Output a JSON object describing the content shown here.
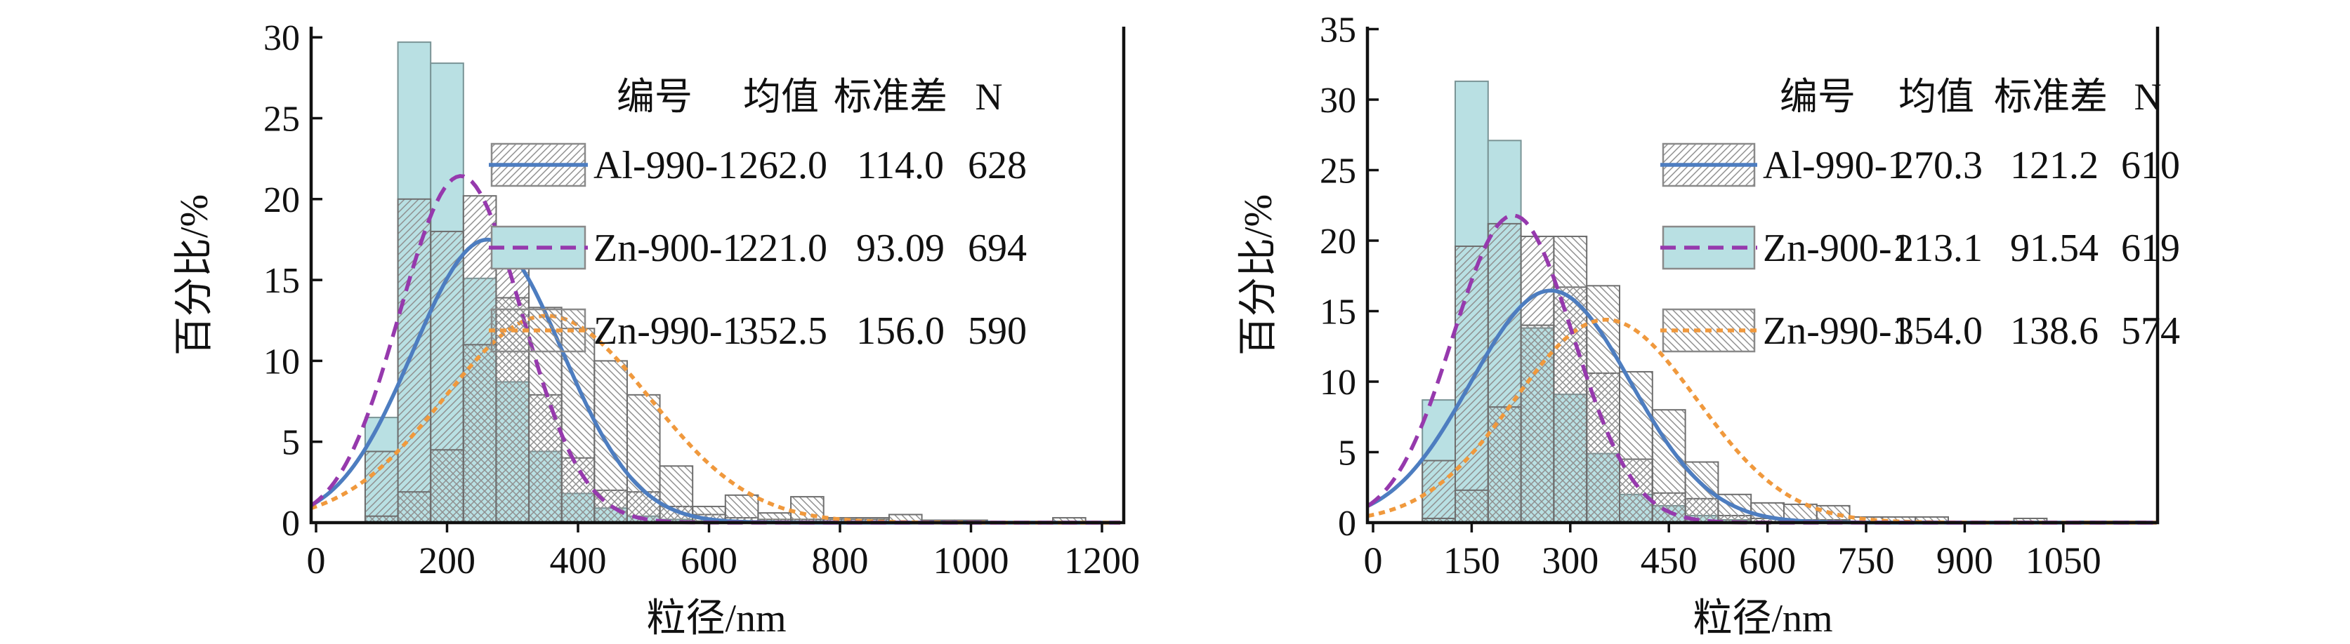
{
  "page": {
    "background": "#ffffff",
    "description_colors": {
      "al_curve_blue": "#4d7dc0",
      "zn900_curve_purple": "#9639ad",
      "zn990_curve_orange": "#f0993d",
      "cyan_bar_fill": "#b9e0e3",
      "bar_outline_gray": "#6e6e6e",
      "hatch_line_gray": "#8f8f8f",
      "axis_black": "#111111"
    }
  },
  "chart_data": [
    {
      "type": "bar",
      "subtype": "overlaid-histograms-with-gaussian-fits",
      "panel": "left",
      "xlabel": "粒径/nm",
      "ylabel": "百分比/%",
      "x_ticks": [
        0,
        200,
        400,
        600,
        800,
        1000,
        1200
      ],
      "y_ticks": [
        0,
        5,
        10,
        15,
        20,
        25,
        30
      ],
      "xlim": [
        -8,
        1233
      ],
      "ylim": [
        0,
        30.6
      ],
      "grid": false,
      "legend_position": "top-right-inside",
      "legend_headers": [
        "编号",
        "均值",
        "标准差",
        "N"
      ],
      "bin_start_nm": 75,
      "bin_width_nm": 50,
      "series": [
        {
          "label": "Al-990-1",
          "mean_label": "262.0",
          "sd_label": "114.0",
          "n_label": "628",
          "mean": 262.0,
          "sd": 114.0,
          "n": 628,
          "fill": "hatch-forward",
          "line_style": "solid",
          "color": "#4d7dc0",
          "heights": [
            4.4,
            20.0,
            18.0,
            20.2,
            17.4,
            7.9,
            4.0,
            2.0,
            1.9,
            1.0,
            0.5,
            0.3,
            0.2,
            0.2,
            0.2,
            0.2,
            0,
            0,
            0,
            0,
            0,
            0,
            0
          ]
        },
        {
          "label": "Zn-900-1",
          "mean_label": "221.0",
          "sd_label": "93.09",
          "n_label": "694",
          "mean": 221.0,
          "sd": 93.09,
          "n": 694,
          "fill": "cyan-solid",
          "line_style": "dashed",
          "color": "#9639ad",
          "heights": [
            6.5,
            29.7,
            28.4,
            15.1,
            8.7,
            4.4,
            1.8,
            0.9,
            0.4,
            0.2,
            0.1,
            0,
            0,
            0,
            0,
            0,
            0,
            0,
            0,
            0,
            0,
            0,
            0
          ]
        },
        {
          "label": "Zn-990-1",
          "mean_label": "352.5",
          "sd_label": "156.0",
          "n_label": "590",
          "mean": 352.5,
          "sd": 156.0,
          "n": 590,
          "fill": "hatch-back",
          "line_style": "short-dash",
          "color": "#f0993d",
          "heights": [
            0.4,
            1.9,
            4.5,
            11.0,
            13.9,
            13.3,
            12.0,
            10.0,
            7.9,
            3.5,
            1.0,
            1.7,
            0.6,
            1.6,
            0.3,
            0.3,
            0.5,
            0.15,
            0.15,
            0,
            0,
            0.3,
            0
          ]
        }
      ]
    },
    {
      "type": "bar",
      "subtype": "overlaid-histograms-with-gaussian-fits",
      "panel": "right",
      "xlabel": "粒径/nm",
      "ylabel": "百分比/%",
      "x_ticks": [
        0,
        150,
        300,
        450,
        600,
        750,
        900,
        1050
      ],
      "y_ticks": [
        0,
        5,
        10,
        15,
        20,
        25,
        30,
        35
      ],
      "xlim": [
        -8,
        1193
      ],
      "ylim": [
        0,
        35.2
      ],
      "grid": false,
      "legend_position": "top-right-inside",
      "legend_headers": [
        "编号",
        "均值",
        "标准差",
        "N"
      ],
      "bin_start_nm": 75,
      "bin_width_nm": 50,
      "series": [
        {
          "label": "Al-990-1",
          "mean_label": "270.3",
          "sd_label": "121.2",
          "n_label": "610",
          "mean": 270.3,
          "sd": 121.2,
          "n": 610,
          "fill": "hatch-forward",
          "line_style": "solid",
          "color": "#4d7dc0",
          "heights": [
            4.4,
            19.6,
            21.2,
            20.3,
            16.7,
            10.6,
            4.5,
            2.1,
            1.7,
            0.5,
            0.3,
            0.2,
            0.2,
            0,
            0,
            0,
            0,
            0,
            0,
            0,
            0,
            0
          ]
        },
        {
          "label": "Zn-900-1",
          "mean_label": "213.1",
          "sd_label": "91.54",
          "n_label": "619",
          "mean": 213.1,
          "sd": 91.54,
          "n": 619,
          "fill": "cyan-solid",
          "line_style": "dashed",
          "color": "#9639ad",
          "heights": [
            8.7,
            31.3,
            27.1,
            13.8,
            9.1,
            4.9,
            2.0,
            1.2,
            0.5,
            0.2,
            0,
            0,
            0,
            0,
            0,
            0,
            0,
            0,
            0,
            0,
            0,
            0
          ]
        },
        {
          "label": "Zn-990-1",
          "mean_label": "354.0",
          "sd_label": "138.6",
          "n_label": "574",
          "mean": 354.0,
          "sd": 138.6,
          "n": 574,
          "fill": "hatch-back",
          "line_style": "short-dash",
          "color": "#f0993d",
          "heights": [
            0.3,
            2.3,
            8.2,
            14.0,
            20.3,
            16.8,
            10.7,
            8.0,
            4.3,
            2.0,
            1.4,
            1.3,
            1.2,
            0.4,
            0.4,
            0.4,
            0,
            0,
            0.3,
            0,
            0.1,
            0.1
          ]
        }
      ]
    }
  ]
}
